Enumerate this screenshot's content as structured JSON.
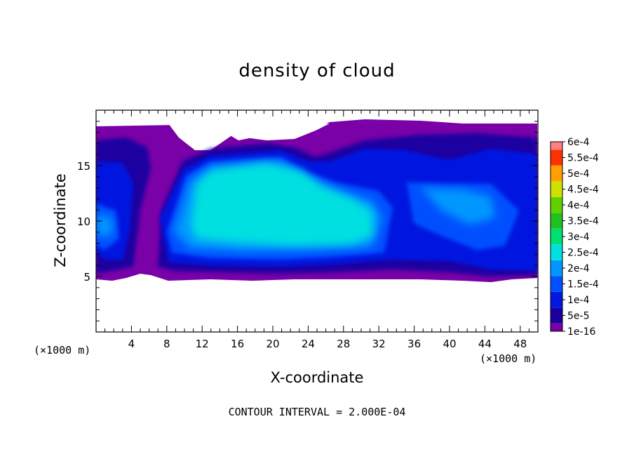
{
  "chart_data": {
    "type": "heatmap",
    "title": "density of cloud",
    "xlabel": "X-coordinate",
    "ylabel": "Z-coordinate",
    "x_unit": "(×1000 m)",
    "z_unit": "(×1000 m)",
    "xlim": [
      0,
      50
    ],
    "ylim": [
      0,
      20
    ],
    "x_ticks": [
      4,
      8,
      12,
      16,
      20,
      24,
      28,
      32,
      36,
      40,
      44,
      48
    ],
    "y_ticks": [
      5,
      10,
      15
    ],
    "contour_interval_label": "CONTOUR INTERVAL = 2.000E-04",
    "colorbar": {
      "labels": [
        "1e-16",
        "5e-5",
        "1e-4",
        "1.5e-4",
        "2e-4",
        "2.5e-4",
        "3e-4",
        "3.5e-4",
        "4e-4",
        "4.5e-4",
        "5e-4",
        "5.5e-4",
        "6e-4"
      ],
      "colors": [
        "#7a00a8",
        "#1a00a0",
        "#0018e0",
        "#0050ff",
        "#0098ff",
        "#00e0e0",
        "#00e070",
        "#20c020",
        "#60d000",
        "#d0e000",
        "#ffa000",
        "#ff3000",
        "#ff8080"
      ]
    }
  }
}
